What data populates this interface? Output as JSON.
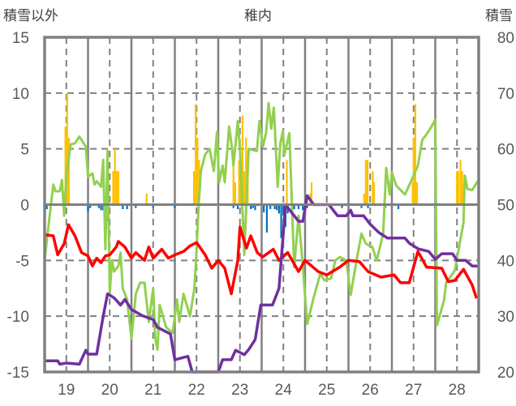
{
  "chart_data": {
    "type": "line",
    "title": "稚内",
    "ylabel": "積雪以外",
    "y2label": "積雪",
    "xlim": [
      18.5,
      28.5
    ],
    "ylim": [
      -15,
      15
    ],
    "y2lim": [
      20,
      80
    ],
    "x_ticks": [
      19,
      20,
      21,
      22,
      23,
      24,
      25,
      26,
      27,
      28
    ],
    "y_ticks": [
      15,
      10,
      5,
      0,
      -5,
      -10,
      -15
    ],
    "y2_ticks": [
      80,
      70,
      60,
      50,
      40,
      30,
      20
    ],
    "grid": true,
    "colors": {
      "red": "#ff0000",
      "green": "#92d050",
      "purple": "#7030a0",
      "orange": "#ffc000",
      "blue": "#0070c0",
      "axis": "#808080"
    },
    "bars_positive": [
      [
        18.98,
        7
      ],
      [
        19.02,
        10
      ],
      [
        19.06,
        6
      ],
      [
        20.08,
        3
      ],
      [
        20.12,
        5
      ],
      [
        20.16,
        3
      ],
      [
        20.2,
        3
      ],
      [
        20.85,
        1
      ],
      [
        21.94,
        3
      ],
      [
        21.98,
        9
      ],
      [
        22.02,
        6
      ],
      [
        22.06,
        4
      ],
      [
        22.85,
        4
      ],
      [
        22.89,
        2
      ],
      [
        22.98,
        4
      ],
      [
        23.02,
        3
      ],
      [
        23.06,
        8
      ],
      [
        23.1,
        3
      ],
      [
        23.14,
        6
      ],
      [
        23.18,
        3
      ],
      [
        24.08,
        4
      ],
      [
        24.62,
        1
      ],
      [
        24.65,
        2
      ],
      [
        25.86,
        1
      ],
      [
        25.9,
        4
      ],
      [
        25.94,
        4
      ],
      [
        26.06,
        3
      ],
      [
        26.09,
        2
      ],
      [
        26.98,
        2
      ],
      [
        27.0,
        6
      ],
      [
        27.04,
        9
      ],
      [
        27.08,
        2
      ],
      [
        28.0,
        3
      ],
      [
        28.03,
        3
      ],
      [
        28.08,
        4
      ],
      [
        28.12,
        3
      ],
      [
        28.16,
        1.2
      ]
    ],
    "bars_negative": [
      [
        18.55,
        -0.4
      ],
      [
        19.5,
        -0.6
      ],
      [
        19.55,
        -0.3
      ],
      [
        19.75,
        -0.3
      ],
      [
        19.8,
        -0.5
      ],
      [
        19.85,
        -0.5
      ],
      [
        19.9,
        -0.5
      ],
      [
        19.95,
        -1.5
      ],
      [
        20.3,
        -0.4
      ],
      [
        20.4,
        -0.4
      ],
      [
        20.6,
        -0.3
      ],
      [
        21.0,
        -0.3
      ],
      [
        21.5,
        -0.3
      ],
      [
        22.85,
        -0.3
      ],
      [
        22.95,
        -0.4
      ],
      [
        23.05,
        -0.4
      ],
      [
        23.25,
        -0.4
      ],
      [
        23.3,
        -0.3
      ],
      [
        23.35,
        -0.5
      ],
      [
        23.55,
        -0.7
      ],
      [
        23.62,
        -2.5
      ],
      [
        23.7,
        -0.4
      ],
      [
        23.8,
        -0.4
      ],
      [
        23.85,
        -0.5
      ],
      [
        23.9,
        -0.8
      ],
      [
        23.95,
        -3
      ],
      [
        24.0,
        -1
      ],
      [
        24.05,
        -2
      ],
      [
        24.1,
        -0.8
      ],
      [
        24.25,
        -0.4
      ],
      [
        24.35,
        -0.4
      ],
      [
        24.45,
        -0.5
      ],
      [
        24.55,
        -0.3
      ],
      [
        25.1,
        -0.3
      ],
      [
        25.35,
        -0.3
      ],
      [
        25.8,
        -0.3
      ],
      [
        25.95,
        -0.3
      ],
      [
        26.35,
        -0.3
      ],
      [
        26.65,
        -0.4
      ],
      [
        27.5,
        -0.3
      ]
    ],
    "series": [
      {
        "name": "red",
        "axis": "left",
        "points": [
          [
            18.5,
            -2.7
          ],
          [
            18.7,
            -2.8
          ],
          [
            18.8,
            -4.5
          ],
          [
            18.95,
            -3.5
          ],
          [
            19.05,
            -1.8
          ],
          [
            19.2,
            -2.8
          ],
          [
            19.35,
            -4.3
          ],
          [
            19.5,
            -4.6
          ],
          [
            19.6,
            -5.5
          ],
          [
            19.7,
            -4.8
          ],
          [
            19.8,
            -5.2
          ],
          [
            19.9,
            -4.6
          ],
          [
            20.0,
            -4.5
          ],
          [
            20.15,
            -3.8
          ],
          [
            20.2,
            -3.3
          ],
          [
            20.35,
            -3.8
          ],
          [
            20.5,
            -4.8
          ],
          [
            20.6,
            -4.3
          ],
          [
            20.8,
            -5.0
          ],
          [
            20.9,
            -3.8
          ],
          [
            21.0,
            -4.8
          ],
          [
            21.2,
            -4.0
          ],
          [
            21.35,
            -4.8
          ],
          [
            21.5,
            -4.5
          ],
          [
            21.7,
            -4.2
          ],
          [
            21.85,
            -3.7
          ],
          [
            22.0,
            -3.4
          ],
          [
            22.2,
            -4.5
          ],
          [
            22.35,
            -5.7
          ],
          [
            22.5,
            -5.0
          ],
          [
            22.65,
            -5.7
          ],
          [
            22.8,
            -8.0
          ],
          [
            22.95,
            -5.0
          ],
          [
            23.0,
            -2.0
          ],
          [
            23.15,
            -3.9
          ],
          [
            23.25,
            -2.8
          ],
          [
            23.4,
            -4.3
          ],
          [
            23.52,
            -4.7
          ],
          [
            23.77,
            -4.0
          ],
          [
            23.9,
            -5.0
          ],
          [
            24.1,
            -4.3
          ],
          [
            24.35,
            -6.0
          ],
          [
            24.5,
            -5.0
          ],
          [
            24.8,
            -6.0
          ],
          [
            25.0,
            -6.3
          ],
          [
            25.3,
            -5.6
          ],
          [
            25.5,
            -5.0
          ],
          [
            25.75,
            -5.1
          ],
          [
            25.95,
            -6.0
          ],
          [
            26.25,
            -6.5
          ],
          [
            26.55,
            -6.3
          ],
          [
            26.7,
            -7.0
          ],
          [
            26.9,
            -7.0
          ],
          [
            27.1,
            -4.2
          ],
          [
            27.3,
            -5.6
          ],
          [
            27.65,
            -5.7
          ],
          [
            27.8,
            -6.9
          ],
          [
            27.95,
            -6.8
          ],
          [
            28.15,
            -5.8
          ],
          [
            28.35,
            -7.2
          ],
          [
            28.45,
            -8.4
          ]
        ]
      },
      {
        "name": "green",
        "axis": "left",
        "points": [
          [
            18.5,
            -5
          ],
          [
            18.6,
            -1.5
          ],
          [
            18.7,
            1.8
          ],
          [
            18.75,
            1.2
          ],
          [
            18.85,
            1.2
          ],
          [
            18.9,
            2.2
          ],
          [
            18.95,
            -1
          ],
          [
            19.0,
            2.5
          ],
          [
            19.1,
            5.4
          ],
          [
            19.2,
            5.5
          ],
          [
            19.3,
            6.1
          ],
          [
            19.45,
            5.2
          ],
          [
            19.5,
            2.5
          ],
          [
            19.6,
            2.8
          ],
          [
            19.65,
            1.8
          ],
          [
            19.7,
            2.1
          ],
          [
            19.8,
            1.6
          ],
          [
            19.85,
            4.0
          ],
          [
            19.9,
            -4
          ],
          [
            19.95,
            4.8
          ],
          [
            20.0,
            -8
          ],
          [
            20.05,
            -5
          ],
          [
            20.1,
            -6
          ],
          [
            20.2,
            -5.5
          ],
          [
            20.25,
            -4.3
          ],
          [
            20.3,
            -7.5
          ],
          [
            20.4,
            -8.5
          ],
          [
            20.5,
            -12
          ],
          [
            20.6,
            -8
          ],
          [
            20.7,
            -7
          ],
          [
            20.8,
            -7
          ],
          [
            20.9,
            -10.5
          ],
          [
            21.0,
            -7.5
          ],
          [
            21.05,
            -12
          ],
          [
            21.1,
            -13
          ],
          [
            21.15,
            -9
          ],
          [
            21.3,
            -11
          ],
          [
            21.45,
            -11.5
          ],
          [
            21.55,
            -8.5
          ],
          [
            21.6,
            -10.5
          ],
          [
            21.7,
            -8
          ],
          [
            21.85,
            -10
          ],
          [
            21.95,
            -7.5
          ],
          [
            22.0,
            -4
          ],
          [
            22.05,
            0
          ],
          [
            22.1,
            3
          ],
          [
            22.2,
            4.5
          ],
          [
            22.3,
            5
          ],
          [
            22.4,
            3
          ],
          [
            22.47,
            6.5
          ],
          [
            22.52,
            2
          ],
          [
            22.6,
            3.5
          ],
          [
            22.65,
            2
          ],
          [
            22.75,
            7
          ],
          [
            22.82,
            5
          ],
          [
            22.85,
            3.5
          ],
          [
            22.95,
            7.5
          ],
          [
            23.0,
            5
          ],
          [
            23.1,
            -4.5
          ],
          [
            23.2,
            5
          ],
          [
            23.39,
            4.8
          ],
          [
            23.45,
            7.5
          ],
          [
            23.53,
            5.2
          ],
          [
            23.6,
            6.4
          ],
          [
            23.66,
            9.1
          ],
          [
            23.72,
            6.8
          ],
          [
            23.78,
            8.7
          ],
          [
            23.87,
            1.6
          ],
          [
            23.93,
            5.5
          ],
          [
            23.99,
            6.6
          ],
          [
            24.02,
            4.4
          ],
          [
            24.14,
            6.4
          ],
          [
            24.25,
            -5.6
          ],
          [
            24.35,
            -1
          ],
          [
            24.45,
            -5.6
          ],
          [
            24.55,
            -10.7
          ],
          [
            24.7,
            -8.3
          ],
          [
            24.85,
            -6.2
          ],
          [
            24.95,
            -6.8
          ],
          [
            25.1,
            -6.6
          ],
          [
            25.2,
            -5
          ],
          [
            25.3,
            -4.7
          ],
          [
            25.45,
            -5
          ],
          [
            25.55,
            -8.1
          ],
          [
            25.7,
            -4.7
          ],
          [
            25.8,
            -2.6
          ],
          [
            25.9,
            -3.5
          ],
          [
            26.05,
            -3.8
          ],
          [
            26.15,
            -5
          ],
          [
            26.3,
            -2.6
          ],
          [
            26.37,
            3.3
          ],
          [
            26.45,
            0.9
          ],
          [
            26.5,
            2.9
          ],
          [
            26.6,
            1.7
          ],
          [
            26.8,
            0.9
          ],
          [
            27.0,
            2.6
          ],
          [
            27.1,
            3.5
          ],
          [
            27.2,
            5.8
          ],
          [
            27.28,
            6.2
          ],
          [
            27.4,
            6.9
          ],
          [
            27.5,
            7.6
          ],
          [
            27.54,
            -10.8
          ],
          [
            27.7,
            -8.6
          ],
          [
            27.75,
            -7
          ],
          [
            27.95,
            -5.9
          ],
          [
            28.15,
            -1.6
          ],
          [
            28.18,
            2.6
          ],
          [
            28.24,
            1.4
          ],
          [
            28.35,
            1.3
          ],
          [
            28.48,
            2.1
          ]
        ]
      },
      {
        "name": "purple",
        "axis": "right",
        "points": [
          [
            18.5,
            22
          ],
          [
            18.8,
            22
          ],
          [
            18.85,
            21.4
          ],
          [
            19.0,
            21.6
          ],
          [
            19.3,
            21.4
          ],
          [
            19.45,
            23.9
          ],
          [
            19.5,
            23.2
          ],
          [
            19.7,
            23.2
          ],
          [
            19.85,
            30
          ],
          [
            19.95,
            34
          ],
          [
            20.1,
            33.3
          ],
          [
            20.25,
            32
          ],
          [
            20.35,
            33
          ],
          [
            20.5,
            31.2
          ],
          [
            20.75,
            30.1
          ],
          [
            21.0,
            29.4
          ],
          [
            21.1,
            28
          ],
          [
            21.4,
            26.8
          ],
          [
            21.5,
            22.2
          ],
          [
            21.8,
            22.8
          ],
          [
            21.9,
            20
          ],
          [
            22.5,
            20
          ],
          [
            22.6,
            22.2
          ],
          [
            22.8,
            22.2
          ],
          [
            22.9,
            23.9
          ],
          [
            23.1,
            23.1
          ],
          [
            23.2,
            24
          ],
          [
            23.35,
            25.8
          ],
          [
            23.48,
            32
          ],
          [
            23.75,
            32
          ],
          [
            23.9,
            35
          ],
          [
            24.05,
            50
          ],
          [
            24.2,
            48.5
          ],
          [
            24.35,
            47
          ],
          [
            24.45,
            47
          ],
          [
            24.55,
            51.6
          ],
          [
            24.7,
            50
          ],
          [
            25.05,
            50
          ],
          [
            25.25,
            48
          ],
          [
            25.45,
            48
          ],
          [
            25.55,
            49
          ],
          [
            25.6,
            48
          ],
          [
            25.85,
            48
          ],
          [
            26.0,
            46.5
          ],
          [
            26.2,
            45
          ],
          [
            26.4,
            44
          ],
          [
            26.8,
            44
          ],
          [
            26.9,
            43.1
          ],
          [
            27.1,
            42.1
          ],
          [
            27.35,
            41.6
          ],
          [
            27.5,
            40.2
          ],
          [
            27.65,
            41.2
          ],
          [
            27.9,
            41.2
          ],
          [
            28.0,
            40
          ],
          [
            28.2,
            40
          ],
          [
            28.35,
            39
          ],
          [
            28.48,
            39
          ]
        ]
      }
    ]
  }
}
